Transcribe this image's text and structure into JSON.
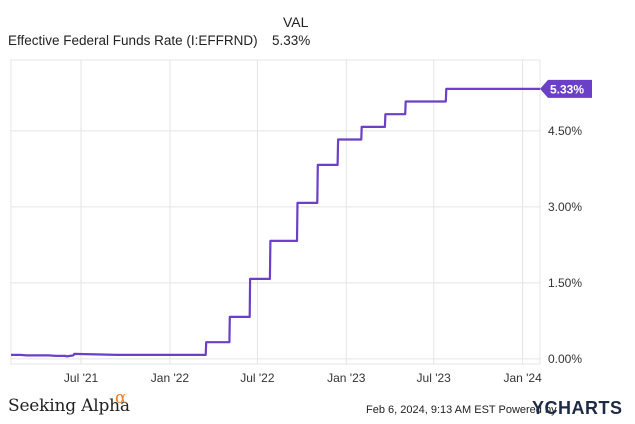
{
  "legend": {
    "header": "VAL",
    "series_name": "Effective Federal Funds Rate (I:EFFRND)",
    "series_value": "5.33%"
  },
  "footer": {
    "brand": "Seeking Alpha",
    "brand_mark": "α",
    "date_text": "Feb 6, 2024, 9:13 AM EST Powered by",
    "logo": "YCHARTS"
  },
  "chart_data": {
    "type": "line",
    "title": "",
    "xlabel": "",
    "ylabel": "",
    "x_ticks": [
      "Jul '21",
      "Jan '22",
      "Jul '22",
      "Jan '23",
      "Jul '23",
      "Jan '24"
    ],
    "y_ticks": [
      "0.00%",
      "1.50%",
      "3.00%",
      "4.50%"
    ],
    "ylim": [
      -0.1,
      5.9
    ],
    "xlim": [
      "2021-02-06",
      "2024-02-06"
    ],
    "grid": true,
    "line_color": "#6b3fc8",
    "last_value_label": "5.33%",
    "series": [
      {
        "name": "Effective Federal Funds Rate (I:EFFRND)",
        "points": [
          [
            "2021-02-06",
            0.08
          ],
          [
            "2021-02-25",
            0.08
          ],
          [
            "2021-03-10",
            0.07
          ],
          [
            "2021-04-25",
            0.07
          ],
          [
            "2021-05-10",
            0.06
          ],
          [
            "2021-05-30",
            0.06
          ],
          [
            "2021-06-01",
            0.05
          ],
          [
            "2021-06-15",
            0.07
          ],
          [
            "2021-06-17",
            0.1
          ],
          [
            "2021-09-15",
            0.08
          ],
          [
            "2021-10-01",
            0.08
          ],
          [
            "2022-03-16",
            0.08
          ],
          [
            "2022-03-17",
            0.33
          ],
          [
            "2022-05-04",
            0.33
          ],
          [
            "2022-05-05",
            0.83
          ],
          [
            "2022-06-15",
            0.83
          ],
          [
            "2022-06-16",
            1.58
          ],
          [
            "2022-07-27",
            1.58
          ],
          [
            "2022-07-28",
            2.33
          ],
          [
            "2022-09-21",
            2.33
          ],
          [
            "2022-09-22",
            3.08
          ],
          [
            "2022-11-02",
            3.08
          ],
          [
            "2022-11-03",
            3.83
          ],
          [
            "2022-12-14",
            3.83
          ],
          [
            "2022-12-15",
            4.33
          ],
          [
            "2023-02-01",
            4.33
          ],
          [
            "2023-02-02",
            4.58
          ],
          [
            "2023-03-22",
            4.58
          ],
          [
            "2023-03-23",
            4.83
          ],
          [
            "2023-05-03",
            4.83
          ],
          [
            "2023-05-04",
            5.08
          ],
          [
            "2023-06-20",
            5.08
          ],
          [
            "2023-07-26",
            5.08
          ],
          [
            "2023-07-27",
            5.33
          ],
          [
            "2024-02-06",
            5.33
          ]
        ]
      }
    ]
  }
}
